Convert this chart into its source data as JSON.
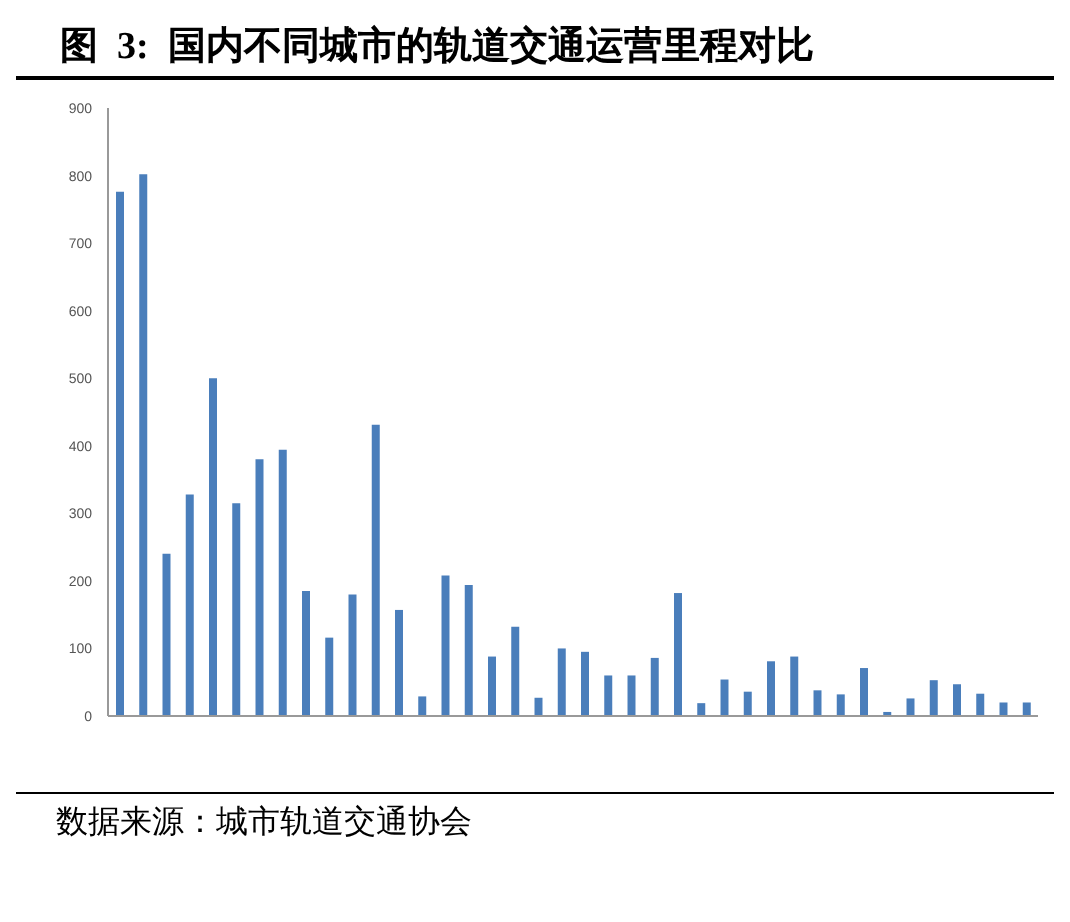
{
  "chart_data": {
    "type": "bar",
    "title": "图  3:  国内不同城市的轨道交通运营里程对比",
    "categories": [
      null,
      null,
      null,
      null,
      null,
      null,
      null,
      null,
      null,
      null,
      null,
      null,
      null,
      null,
      null,
      null,
      null,
      null,
      null,
      null,
      null,
      null,
      null,
      null,
      null,
      null,
      null,
      null,
      null,
      null,
      null,
      null,
      null,
      null,
      null,
      null,
      null,
      null,
      null,
      null
    ],
    "values": [
      776,
      802,
      240,
      328,
      500,
      315,
      380,
      394,
      185,
      116,
      180,
      431,
      157,
      29,
      208,
      194,
      88,
      132,
      27,
      100,
      95,
      60,
      60,
      86,
      182,
      19,
      54,
      36,
      81,
      88,
      38,
      32,
      71,
      6,
      26,
      53,
      47,
      33,
      20,
      20
    ],
    "color": "#4a7ebb",
    "ylim": [
      0,
      900
    ],
    "yticks": [
      0,
      100,
      200,
      300,
      400,
      500,
      600,
      700,
      800,
      900
    ],
    "grid": false,
    "annotations": [
      "数据来源：城市轨道交通协会"
    ]
  }
}
